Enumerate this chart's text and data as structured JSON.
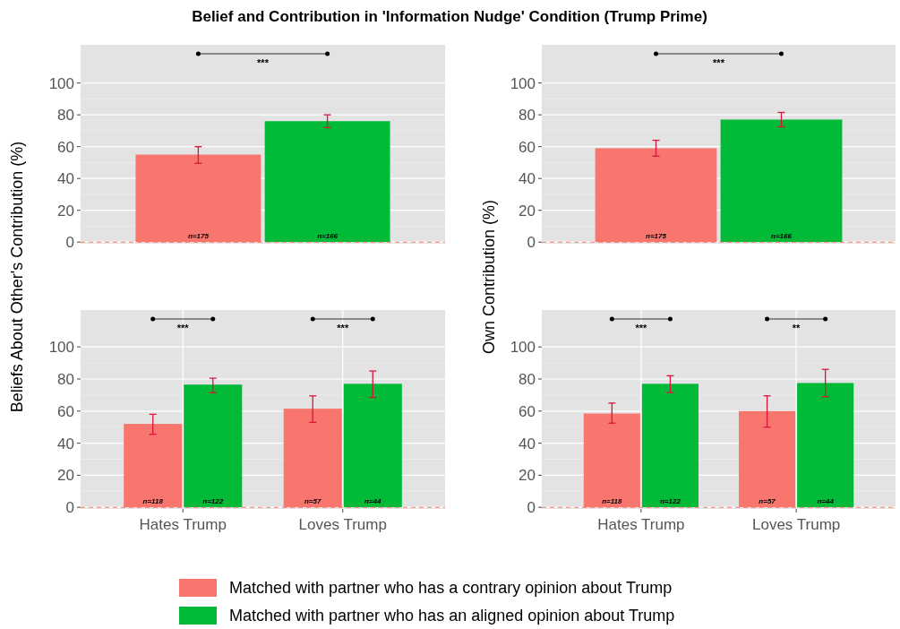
{
  "chart_data": [
    {
      "type": "bar",
      "title": "Belief and Contribution in 'Information Nudge' Condition (Trump Prime)",
      "ylabel": "Beliefs About Other's Contribution (%)",
      "categories": [
        null
      ],
      "ylim": [
        -1,
        124
      ],
      "yticks": [
        0,
        20,
        40,
        60,
        80,
        100
      ],
      "grid": "y",
      "legend": "bottom",
      "series": [
        {
          "name": "Matched with partner who has a contrary opinion about Trump",
          "color": "#f8766d",
          "values": [
            55
          ],
          "errors": [
            [
              49.5,
              60
            ]
          ]
        },
        {
          "name": "Matched with partner who has an aligned opinion about Trump",
          "color": "#00ba38",
          "values": [
            76
          ],
          "errors": [
            [
              72,
              80
            ]
          ]
        }
      ],
      "annotations": [
        "n=175",
        "n=166",
        "***"
      ],
      "ref_lines": [
        {
          "axis": "y",
          "value": 0,
          "color": "#f8766d",
          "line_style": "dashed"
        }
      ]
    },
    {
      "type": "bar",
      "ylabel": "Own Contribution (%)",
      "categories": [
        null
      ],
      "ylim": [
        -1,
        124
      ],
      "yticks": [
        0,
        20,
        40,
        60,
        80,
        100
      ],
      "grid": "y",
      "series": [
        {
          "color": "#f8766d",
          "values": [
            59
          ],
          "errors": [
            [
              54,
              64
            ]
          ]
        },
        {
          "color": "#00ba38",
          "values": [
            77
          ],
          "errors": [
            [
              72.5,
              81.5
            ]
          ]
        }
      ],
      "annotations": [
        "n=175",
        "n=166",
        "***"
      ],
      "ref_lines": [
        {
          "axis": "y",
          "value": 0,
          "color": "#f8766d",
          "line_style": "dashed"
        }
      ]
    },
    {
      "type": "bar",
      "categories": [
        "Hates Trump",
        "Loves Trump"
      ],
      "ylim": [
        -1,
        123
      ],
      "yticks": [
        0,
        20,
        40,
        60,
        80,
        100
      ],
      "grid": true,
      "series": [
        {
          "color": "#f8766d",
          "values": [
            52,
            61.5
          ],
          "errors": [
            [
              45.5,
              58
            ],
            [
              53,
              69.5
            ]
          ]
        },
        {
          "color": "#00ba38",
          "values": [
            76.5,
            77
          ],
          "errors": [
            [
              71.5,
              80.5
            ],
            [
              68.5,
              85
            ]
          ]
        }
      ],
      "annotations": [
        "n=118",
        "n=57",
        "n=122",
        "n=44",
        "***",
        "***"
      ],
      "ref_lines": [
        {
          "axis": "y",
          "value": 0,
          "color": "#f8766d",
          "line_style": "dashed"
        }
      ]
    },
    {
      "type": "bar",
      "categories": [
        "Hates Trump",
        "Loves Trump"
      ],
      "ylim": [
        -1,
        123
      ],
      "yticks": [
        0,
        20,
        40,
        60,
        80,
        100
      ],
      "grid": true,
      "series": [
        {
          "color": "#f8766d",
          "values": [
            58.5,
            60
          ],
          "errors": [
            [
              52.5,
              65
            ],
            [
              50,
              69.5
            ]
          ]
        },
        {
          "color": "#00ba38",
          "values": [
            77,
            77.5
          ],
          "errors": [
            [
              71.5,
              82
            ],
            [
              69,
              86
            ]
          ]
        }
      ],
      "annotations": [
        "n=118",
        "n=57",
        "n=122",
        "n=44",
        "***",
        "**"
      ],
      "ref_lines": [
        {
          "axis": "y",
          "value": 0,
          "color": "#f8766d",
          "line_style": "dashed"
        }
      ]
    }
  ]
}
